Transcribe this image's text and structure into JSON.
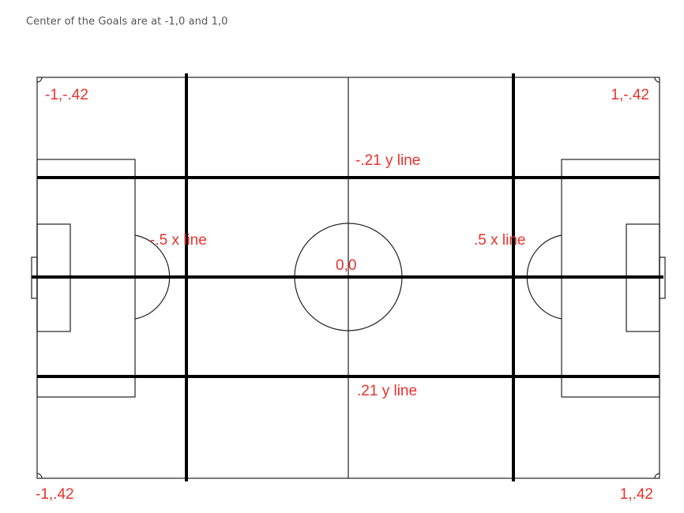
{
  "caption": "Center of the Goals are at -1,0 and 1,0",
  "labels": {
    "top_left": "-1,-.42",
    "top_right": "1,-.42",
    "bottom_left": "-1,.42",
    "bottom_right": "1,.42",
    "y_line_top": "-.21 y line",
    "y_line_bottom": ".21 y line",
    "x_line_left": "-.5 x line",
    "x_line_right": ".5 x line",
    "center": "0,0"
  },
  "colors": {
    "annotation": "#e8322d",
    "field_lines": "#222222",
    "grid_lines": "#000000"
  }
}
